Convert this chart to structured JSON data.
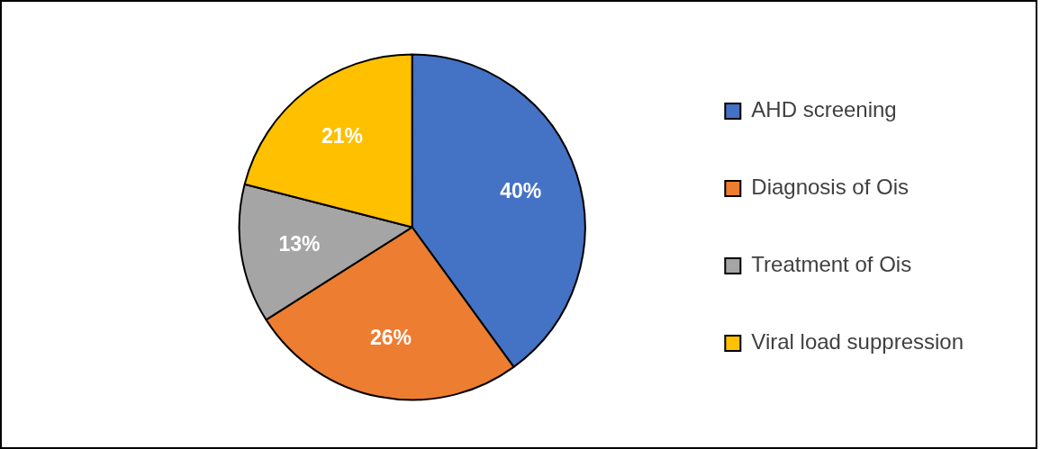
{
  "chart_data": {
    "type": "pie",
    "categories": [
      "AHD screening",
      "Diagnosis of Ois",
      "Treatment of Ois",
      "Viral load suppression"
    ],
    "values": [
      40,
      26,
      13,
      21
    ],
    "colors": [
      "#4472c4",
      "#ed7d31",
      "#a5a5a5",
      "#ffc000"
    ],
    "value_labels": [
      "40%",
      "26%",
      "13%",
      "21%"
    ],
    "legend": "right"
  }
}
